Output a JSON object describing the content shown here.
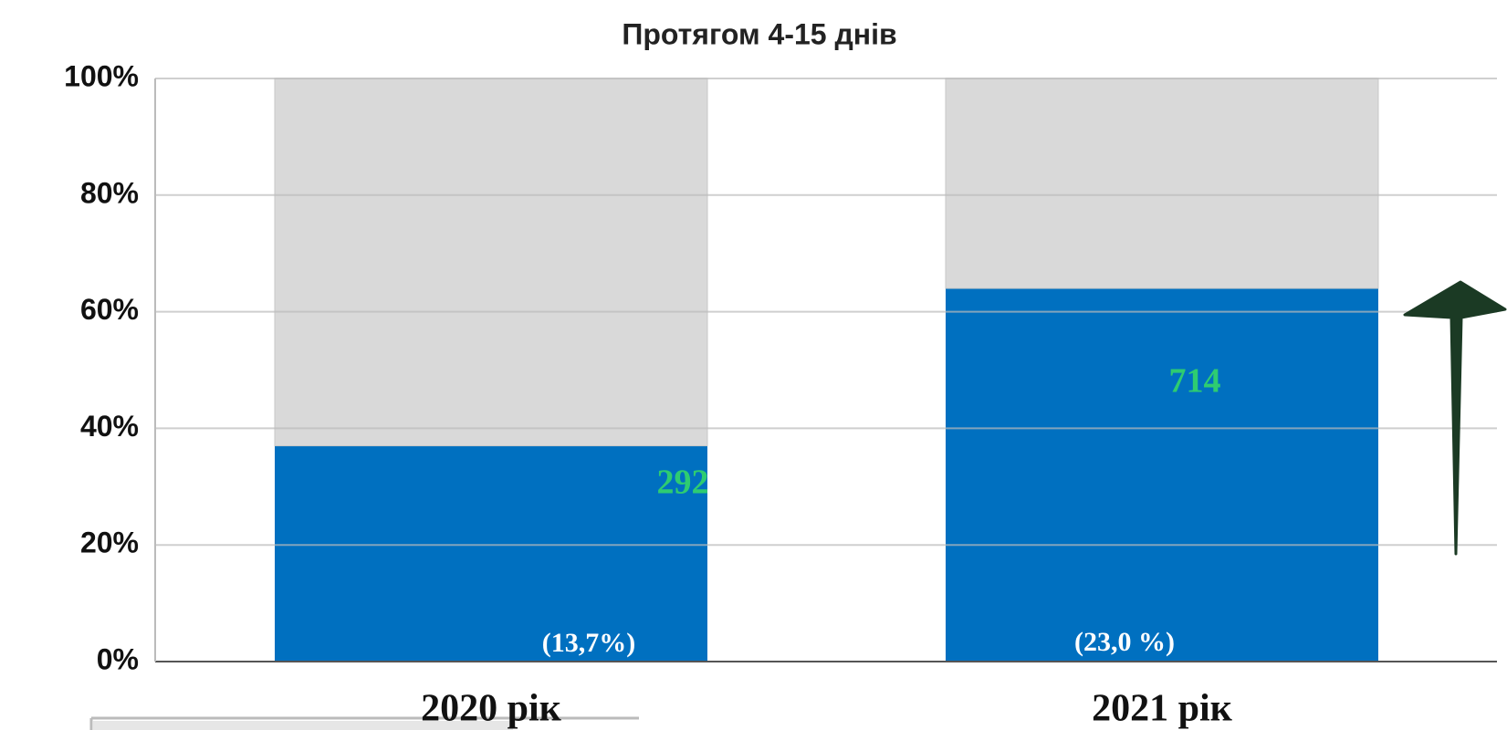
{
  "chart_data": {
    "type": "stacked_bar_100",
    "title": "Протягом 4-15 днів",
    "categories": [
      "2020 рік",
      "2021 рік"
    ],
    "series": [
      {
        "color": "#0070c0",
        "values": [
          37,
          64
        ]
      },
      {
        "color": "#d9d9d9",
        "values": [
          63,
          36
        ]
      }
    ],
    "counts": [
      292,
      714
    ],
    "shares": [
      "(13,7%)",
      "(23,0 %)"
    ],
    "ylim": [
      0,
      100
    ],
    "yticks": [
      {
        "value": 0,
        "label": "0%"
      },
      {
        "value": 20,
        "label": "20%"
      },
      {
        "value": 40,
        "label": "40%"
      },
      {
        "value": 60,
        "label": "60%"
      },
      {
        "value": 80,
        "label": "80%"
      },
      {
        "value": 100,
        "label": "100%"
      }
    ],
    "grid": true
  }
}
